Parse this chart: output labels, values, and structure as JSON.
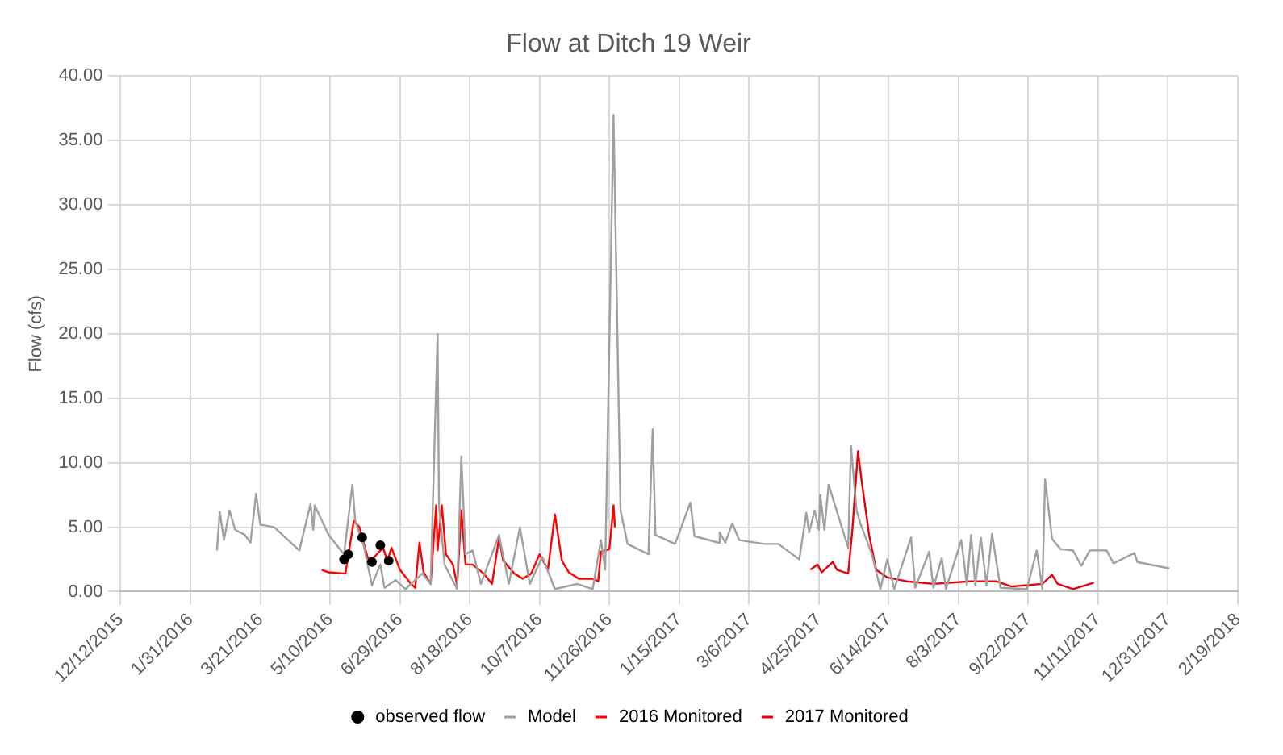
{
  "chart_data": {
    "type": "line",
    "title": "Flow at Ditch 19 Weir",
    "ylabel": "Flow (cfs)",
    "xlim": [
      "2015-12-12",
      "2018-02-19"
    ],
    "xticks": [
      {
        "value": "2015-12-12",
        "label": "12/12/2015"
      },
      {
        "value": "2016-01-31",
        "label": "1/31/2016"
      },
      {
        "value": "2016-03-21",
        "label": "3/21/2016"
      },
      {
        "value": "2016-05-10",
        "label": "5/10/2016"
      },
      {
        "value": "2016-06-29",
        "label": "6/29/2016"
      },
      {
        "value": "2016-08-18",
        "label": "8/18/2016"
      },
      {
        "value": "2016-10-07",
        "label": "10/7/2016"
      },
      {
        "value": "2016-11-26",
        "label": "11/26/2016"
      },
      {
        "value": "2017-01-15",
        "label": "1/15/2017"
      },
      {
        "value": "2017-03-06",
        "label": "3/6/2017"
      },
      {
        "value": "2017-04-25",
        "label": "4/25/2017"
      },
      {
        "value": "2017-06-14",
        "label": "6/14/2017"
      },
      {
        "value": "2017-08-03",
        "label": "8/3/2017"
      },
      {
        "value": "2017-09-22",
        "label": "9/22/2017"
      },
      {
        "value": "2017-11-11",
        "label": "11/11/2017"
      },
      {
        "value": "2017-12-31",
        "label": "12/31/2017"
      },
      {
        "value": "2018-02-19",
        "label": "2/19/2018"
      }
    ],
    "ylim": [
      0,
      40
    ],
    "yticks": [
      {
        "value": 0,
        "label": "0.00"
      },
      {
        "value": 5,
        "label": "5.00"
      },
      {
        "value": 10,
        "label": "10.00"
      },
      {
        "value": 15,
        "label": "15.00"
      },
      {
        "value": 20,
        "label": "20.00"
      },
      {
        "value": 25,
        "label": "25.00"
      },
      {
        "value": 30,
        "label": "30.00"
      },
      {
        "value": 35,
        "label": "35.00"
      },
      {
        "value": 40,
        "label": "40.00"
      }
    ],
    "grid": true,
    "legend": "bottom",
    "marker": "none",
    "line_style": "solid",
    "series": [
      {
        "name": "observed flow",
        "type": "scatter",
        "marker": "circle",
        "color": "#000000",
        "x": [
          "2016-05-20",
          "2016-05-23",
          "2016-06-02",
          "2016-06-09",
          "2016-06-15",
          "2016-06-21"
        ],
        "values": [
          2.5,
          2.9,
          4.2,
          2.3,
          3.6,
          2.4
        ]
      },
      {
        "name": "Model",
        "color": "#a0a0a0",
        "x": [
          "2016-02-19",
          "2016-02-21",
          "2016-02-24",
          "2016-02-28",
          "2016-03-03",
          "2016-03-10",
          "2016-03-14",
          "2016-03-18",
          "2016-03-21",
          "2016-03-31",
          "2016-04-18",
          "2016-04-26",
          "2016-04-28",
          "2016-04-29",
          "2016-05-09",
          "2016-05-20",
          "2016-05-26",
          "2016-05-28",
          "2016-06-03",
          "2016-06-09",
          "2016-06-15",
          "2016-06-18",
          "2016-06-26",
          "2016-07-03",
          "2016-07-15",
          "2016-07-21",
          "2016-07-26",
          "2016-07-27",
          "2016-07-31",
          "2016-08-09",
          "2016-08-12",
          "2016-08-15",
          "2016-08-20",
          "2016-08-26",
          "2016-09-08",
          "2016-09-15",
          "2016-09-23",
          "2016-09-30",
          "2016-10-09",
          "2016-10-18",
          "2016-11-03",
          "2016-11-14",
          "2016-11-20",
          "2016-11-23",
          "2016-11-29",
          "2016-12-04",
          "2016-12-09",
          "2016-12-24",
          "2016-12-27",
          "2016-12-29",
          "2017-01-12",
          "2017-01-23",
          "2017-01-26",
          "2017-02-12",
          "2017-02-13",
          "2017-02-17",
          "2017-02-22",
          "2017-02-27",
          "2017-03-17",
          "2017-03-27",
          "2017-04-11",
          "2017-04-16",
          "2017-04-18",
          "2017-04-22",
          "2017-04-25",
          "2017-04-26",
          "2017-04-29",
          "2017-05-02",
          "2017-05-16",
          "2017-05-18",
          "2017-05-22",
          "2017-05-25",
          "2017-06-02",
          "2017-06-08",
          "2017-06-13",
          "2017-06-18",
          "2017-06-30",
          "2017-07-03",
          "2017-07-13",
          "2017-07-16",
          "2017-07-22",
          "2017-07-25",
          "2017-08-05",
          "2017-08-09",
          "2017-08-12",
          "2017-08-15",
          "2017-08-19",
          "2017-08-23",
          "2017-08-27",
          "2017-09-02",
          "2017-09-21",
          "2017-09-28",
          "2017-10-02",
          "2017-10-04",
          "2017-10-09",
          "2017-10-15",
          "2017-10-24",
          "2017-10-30",
          "2017-11-05",
          "2017-11-17",
          "2017-11-22",
          "2017-12-07",
          "2017-12-09",
          "2018-01-01"
        ],
        "values": [
          3.2,
          6.2,
          4.0,
          6.3,
          4.8,
          4.4,
          3.8,
          7.6,
          5.2,
          5.0,
          3.2,
          6.8,
          4.8,
          6.7,
          4.4,
          2.9,
          8.3,
          5.5,
          3.6,
          0.5,
          2.1,
          0.3,
          0.9,
          0.2,
          1.4,
          0.6,
          20.0,
          6.7,
          2.1,
          0.2,
          10.5,
          2.9,
          3.2,
          0.6,
          4.4,
          0.6,
          5.0,
          0.6,
          2.7,
          0.2,
          0.6,
          0.2,
          4.0,
          1.7,
          37.0,
          6.3,
          3.7,
          2.9,
          12.6,
          4.4,
          3.7,
          6.9,
          4.3,
          3.8,
          4.6,
          3.8,
          5.3,
          4.0,
          3.7,
          3.7,
          2.5,
          6.1,
          4.6,
          6.3,
          4.8,
          7.5,
          4.8,
          8.3,
          3.4,
          11.3,
          6.3,
          5.2,
          2.9,
          0.2,
          2.5,
          0.2,
          4.2,
          0.3,
          3.1,
          0.3,
          2.6,
          0.2,
          4.0,
          0.5,
          4.4,
          0.5,
          4.2,
          0.5,
          4.5,
          0.3,
          0.2,
          3.2,
          0.2,
          8.7,
          4.1,
          3.3,
          3.2,
          2.0,
          3.2,
          3.2,
          2.2,
          3.0,
          2.3,
          1.8
        ]
      },
      {
        "name": "2016 Monitored",
        "color": "#ff0000",
        "x": [
          "2016-05-04",
          "2016-05-09",
          "2016-05-21",
          "2016-05-27",
          "2016-05-31",
          "2016-06-06",
          "2016-06-09",
          "2016-06-17",
          "2016-06-20",
          "2016-06-23",
          "2016-06-29",
          "2016-07-07",
          "2016-07-10",
          "2016-07-13",
          "2016-07-16",
          "2016-07-21",
          "2016-07-25",
          "2016-07-26",
          "2016-07-29",
          "2016-08-01",
          "2016-08-06",
          "2016-08-09",
          "2016-08-12",
          "2016-08-15",
          "2016-08-20",
          "2016-08-28",
          "2016-09-03",
          "2016-09-08",
          "2016-09-11",
          "2016-09-19",
          "2016-09-25",
          "2016-10-01",
          "2016-10-07",
          "2016-10-13",
          "2016-10-18",
          "2016-10-23",
          "2016-10-28",
          "2016-11-04",
          "2016-11-14",
          "2016-11-18",
          "2016-11-20",
          "2016-11-26",
          "2016-11-29",
          "2016-11-30"
        ],
        "values": [
          1.7,
          1.5,
          1.4,
          5.5,
          5.0,
          2.6,
          2.5,
          3.4,
          2.4,
          3.4,
          1.7,
          0.6,
          0.3,
          3.8,
          1.5,
          0.6,
          6.7,
          3.2,
          6.7,
          2.9,
          2.1,
          0.5,
          6.3,
          2.1,
          2.1,
          1.4,
          0.6,
          4.2,
          2.4,
          1.4,
          1.0,
          1.4,
          2.9,
          1.7,
          6.0,
          2.4,
          1.5,
          1.0,
          1.0,
          0.8,
          3.1,
          3.3,
          6.7,
          5.0
        ]
      },
      {
        "name": "2017 Monitored",
        "color": "#e8000b",
        "x": [
          "2017-04-19",
          "2017-04-24",
          "2017-04-27",
          "2017-05-05",
          "2017-05-08",
          "2017-05-16",
          "2017-05-19",
          "2017-05-23",
          "2017-05-26",
          "2017-05-31",
          "2017-06-05",
          "2017-06-13",
          "2017-06-27",
          "2017-07-16",
          "2017-08-11",
          "2017-08-30",
          "2017-09-10",
          "2017-10-02",
          "2017-10-09",
          "2017-10-13",
          "2017-10-24",
          "2017-11-08"
        ],
        "values": [
          1.7,
          2.1,
          1.5,
          2.3,
          1.7,
          1.4,
          4.8,
          10.9,
          8.3,
          4.4,
          1.7,
          1.1,
          0.8,
          0.6,
          0.8,
          0.8,
          0.4,
          0.6,
          1.3,
          0.6,
          0.2,
          0.7
        ]
      }
    ]
  }
}
